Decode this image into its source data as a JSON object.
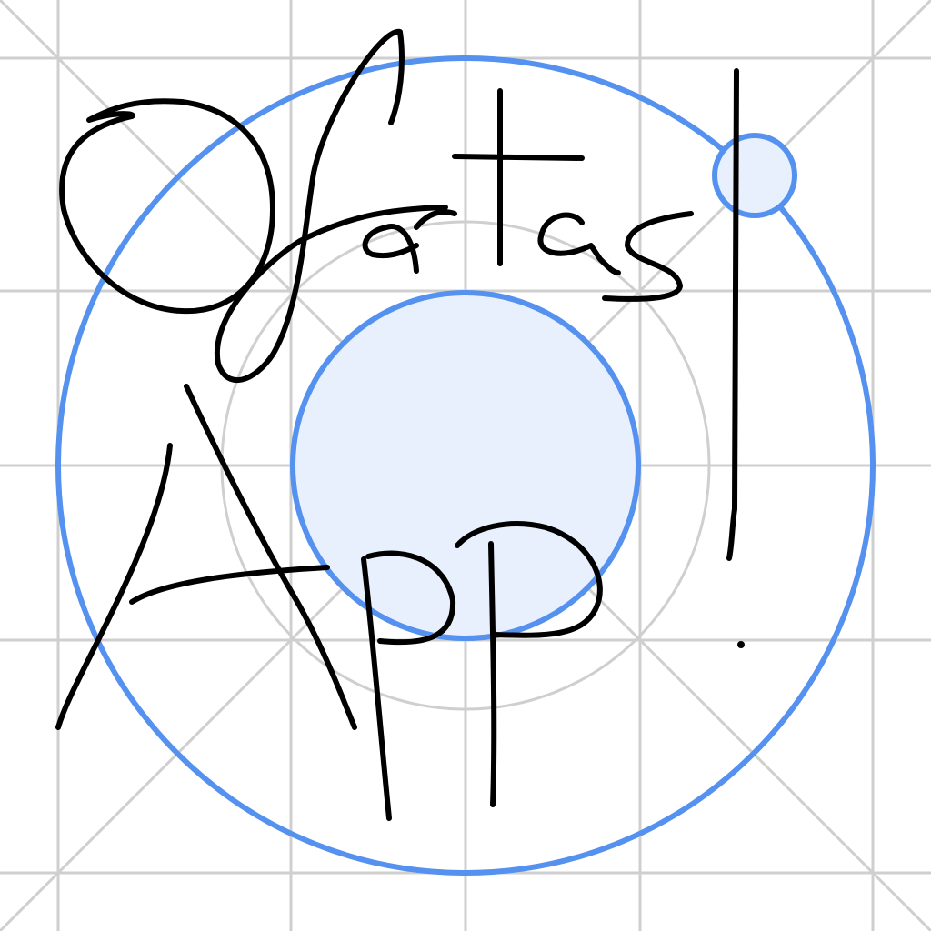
{
  "handwriting": {
    "line1": "Ofartas!",
    "line2": "App"
  }
}
